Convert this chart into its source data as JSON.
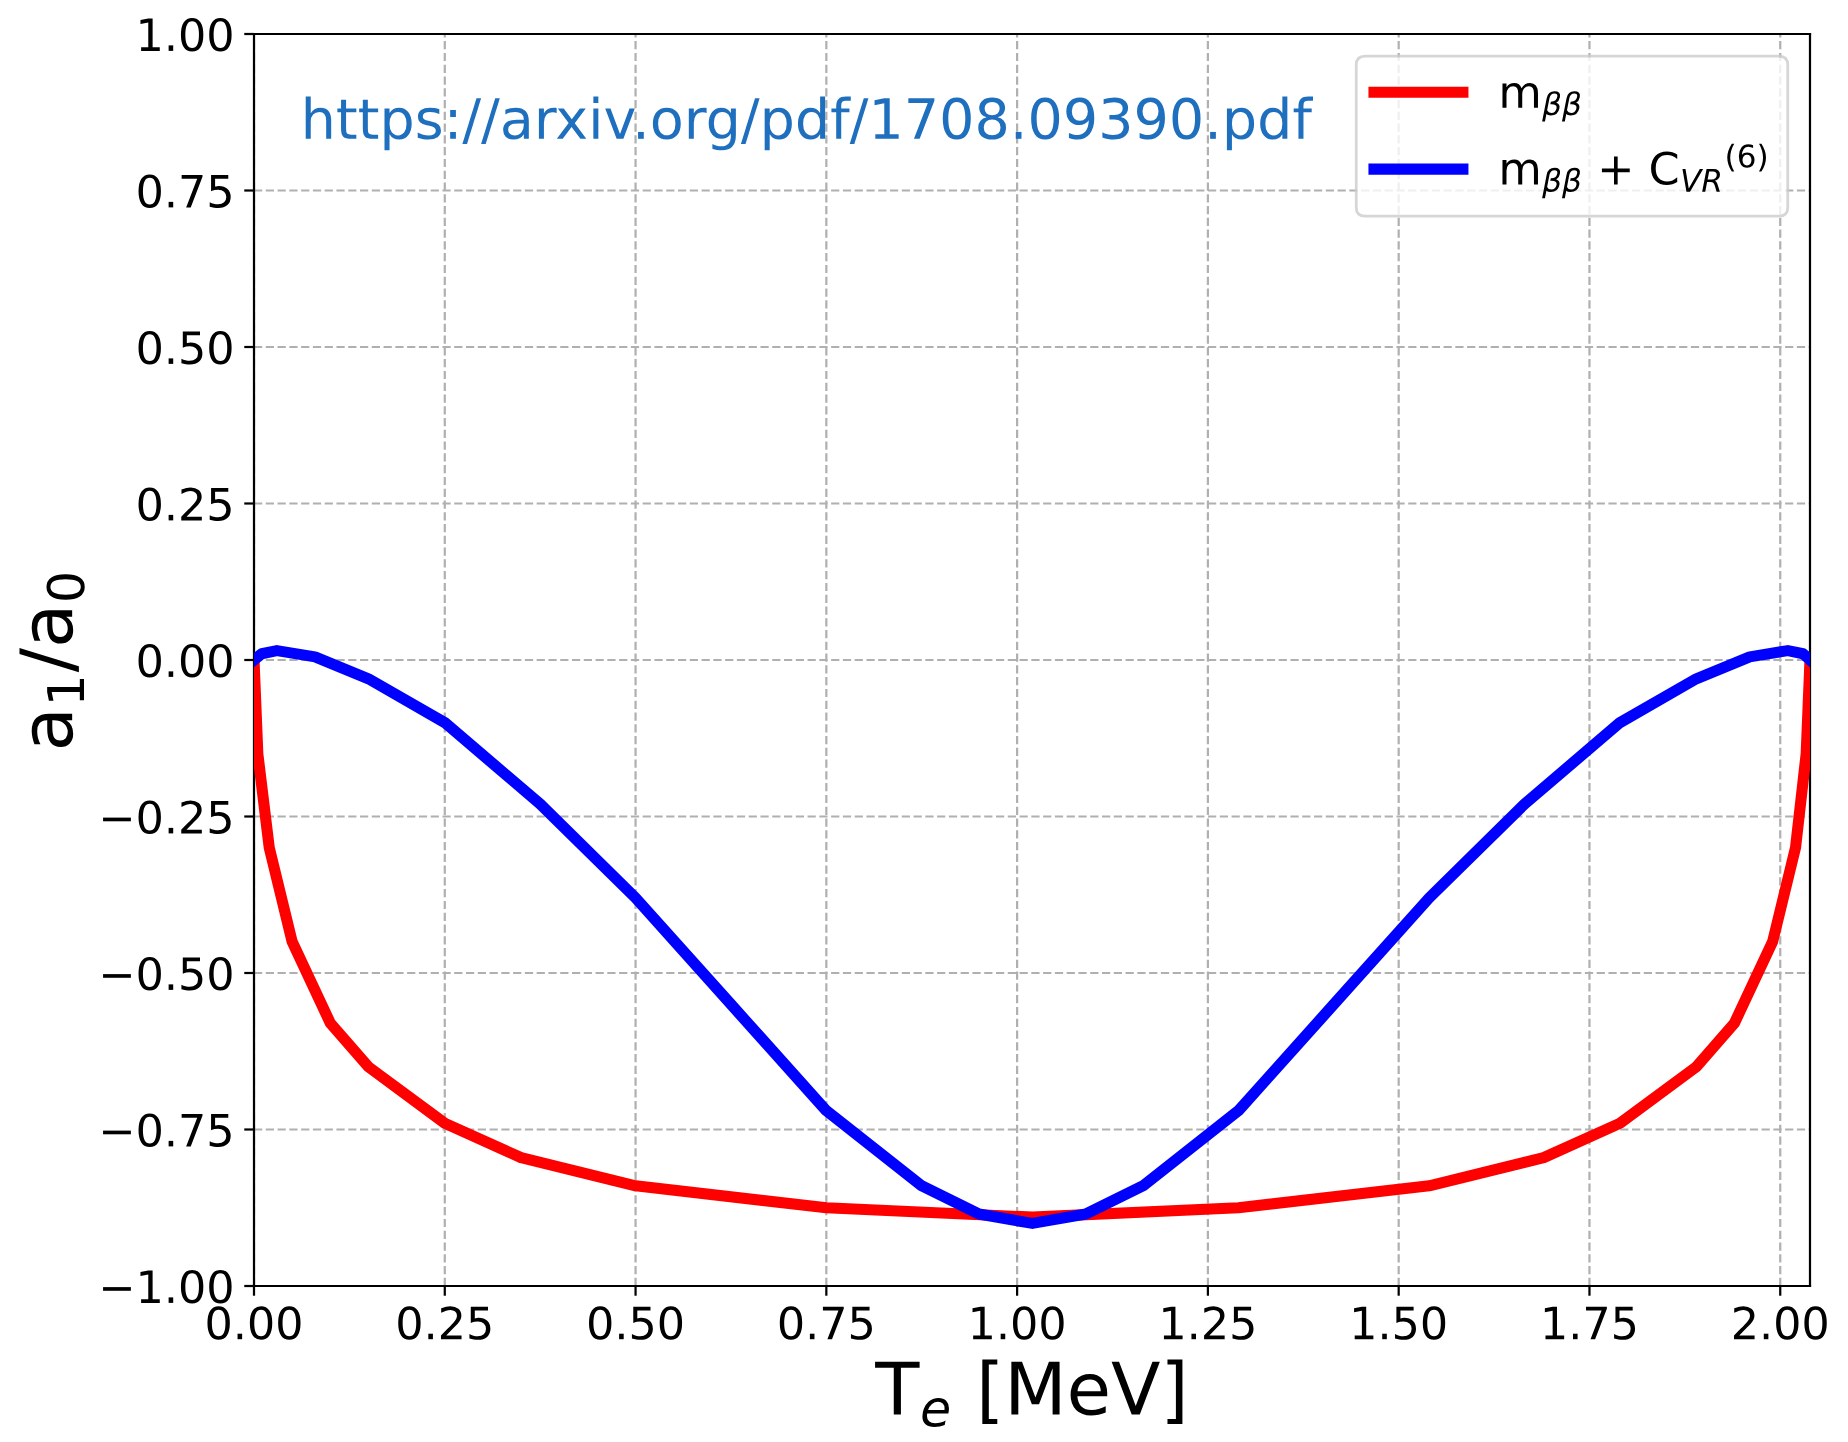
{
  "chart_data": {
    "type": "line",
    "xlabel": "T$_{e}$ [MeV]",
    "ylabel": "a$_{1}$/a$_{0}$",
    "annotations": [
      "https://arxiv.org/pdf/1708.09390.pdf"
    ],
    "xlim": [
      0,
      2.039
    ],
    "ylim": [
      -1,
      1
    ],
    "xticks": [
      {
        "value": 0,
        "label": "0.00"
      },
      {
        "value": 0.25,
        "label": "0.25"
      },
      {
        "value": 0.5,
        "label": "0.50"
      },
      {
        "value": 0.75,
        "label": "0.75"
      },
      {
        "value": 1,
        "label": "1.00"
      },
      {
        "value": 1.25,
        "label": "1.25"
      },
      {
        "value": 1.5,
        "label": "1.50"
      },
      {
        "value": 1.75,
        "label": "1.75"
      },
      {
        "value": 2,
        "label": "2.00"
      }
    ],
    "yticks": [
      {
        "value": -1,
        "label": "−1.00"
      },
      {
        "value": -0.75,
        "label": "−0.75"
      },
      {
        "value": -0.5,
        "label": "−0.50"
      },
      {
        "value": -0.25,
        "label": "−0.25"
      },
      {
        "value": 0,
        "label": "0.00"
      },
      {
        "value": 0.25,
        "label": "0.25"
      },
      {
        "value": 0.5,
        "label": "0.50"
      },
      {
        "value": 0.75,
        "label": "0.75"
      },
      {
        "value": 1,
        "label": "1.00"
      }
    ],
    "grid": true,
    "legend": "top right",
    "line_style": "solid",
    "marker": "none",
    "series": [
      {
        "name": "m$_{ββ}$",
        "color": "#ff0000",
        "x": [
          0,
          0.005,
          0.02,
          0.05,
          0.1,
          0.15,
          0.25,
          0.35,
          0.5,
          0.75,
          1.02,
          1.29,
          1.54,
          1.69,
          1.79,
          1.89,
          1.94,
          1.99,
          2.02,
          2.034,
          2.039
        ],
        "values": [
          0,
          -0.15,
          -0.3,
          -0.45,
          -0.58,
          -0.65,
          -0.74,
          -0.795,
          -0.84,
          -0.875,
          -0.89,
          -0.875,
          -0.84,
          -0.795,
          -0.74,
          -0.65,
          -0.58,
          -0.45,
          -0.3,
          -0.15,
          0
        ]
      },
      {
        "name": "m$_{ββ}$ + C$_{VR}$$^{(6)}$",
        "color": "#0000ff",
        "x": [
          0,
          0.01,
          0.03,
          0.08,
          0.15,
          0.25,
          0.375,
          0.5,
          0.625,
          0.75,
          0.875,
          0.95,
          1.02,
          1.09,
          1.165,
          1.29,
          1.415,
          1.54,
          1.665,
          1.79,
          1.89,
          1.96,
          2.01,
          2.03,
          2.039
        ],
        "values": [
          0,
          0.01,
          0.015,
          0.005,
          -0.03,
          -0.1,
          -0.23,
          -0.38,
          -0.55,
          -0.72,
          -0.84,
          -0.885,
          -0.9,
          -0.885,
          -0.84,
          -0.72,
          -0.55,
          -0.38,
          -0.23,
          -0.1,
          -0.03,
          0.005,
          0.015,
          0.01,
          0
        ]
      }
    ]
  }
}
